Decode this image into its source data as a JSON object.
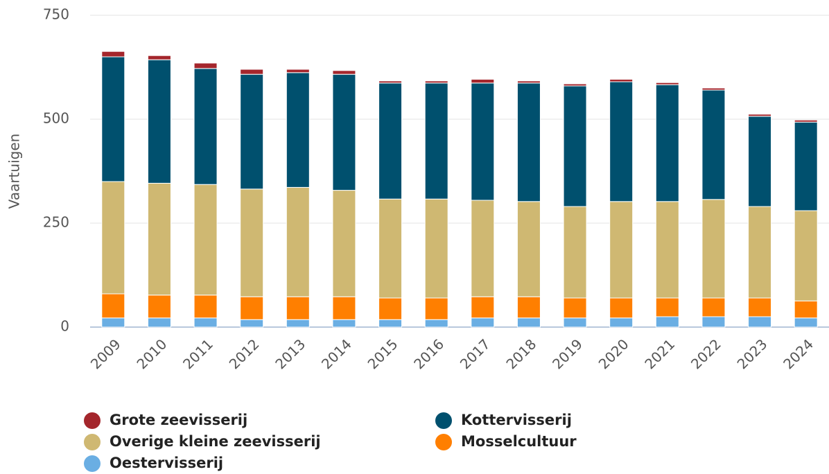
{
  "chart_data": {
    "type": "stacked_bar",
    "y_label": "Vaartuigen",
    "categories": [
      "2009",
      "2010",
      "2011",
      "2012",
      "2013",
      "2014",
      "2015",
      "2016",
      "2017",
      "2018",
      "2019",
      "2020",
      "2021",
      "2022",
      "2023",
      "2024"
    ],
    "series": [
      {
        "name": "Grote zeevisserij",
        "color": "#a4262c",
        "values": [
          13,
          10,
          13,
          12,
          8,
          9,
          5,
          5,
          9,
          5,
          5,
          6,
          5,
          5,
          5,
          5
        ]
      },
      {
        "name": "Kottervisserij",
        "color": "#00506e",
        "values": [
          300,
          297,
          279,
          276,
          276,
          279,
          279,
          279,
          282,
          285,
          290,
          288,
          281,
          263,
          217,
          213
        ]
      },
      {
        "name": "Overige kleine zeevisserij",
        "color": "#cfb872",
        "values": [
          270,
          269,
          266,
          259,
          263,
          256,
          238,
          238,
          232,
          229,
          220,
          232,
          232,
          237,
          220,
          217
        ]
      },
      {
        "name": "Mosselcultuur",
        "color": "#ff7f00",
        "values": [
          58,
          55,
          55,
          55,
          55,
          55,
          52,
          52,
          51,
          51,
          48,
          48,
          45,
          45,
          45,
          41
        ]
      },
      {
        "name": "Oestervisserij",
        "color": "#6aaee3",
        "values": [
          22,
          22,
          22,
          18,
          18,
          18,
          18,
          18,
          22,
          22,
          22,
          22,
          25,
          25,
          25,
          22
        ]
      }
    ],
    "ylim": [
      0,
      750
    ],
    "yticks": [
      0,
      250,
      500,
      750
    ],
    "grid": true,
    "legend": "bottom"
  }
}
